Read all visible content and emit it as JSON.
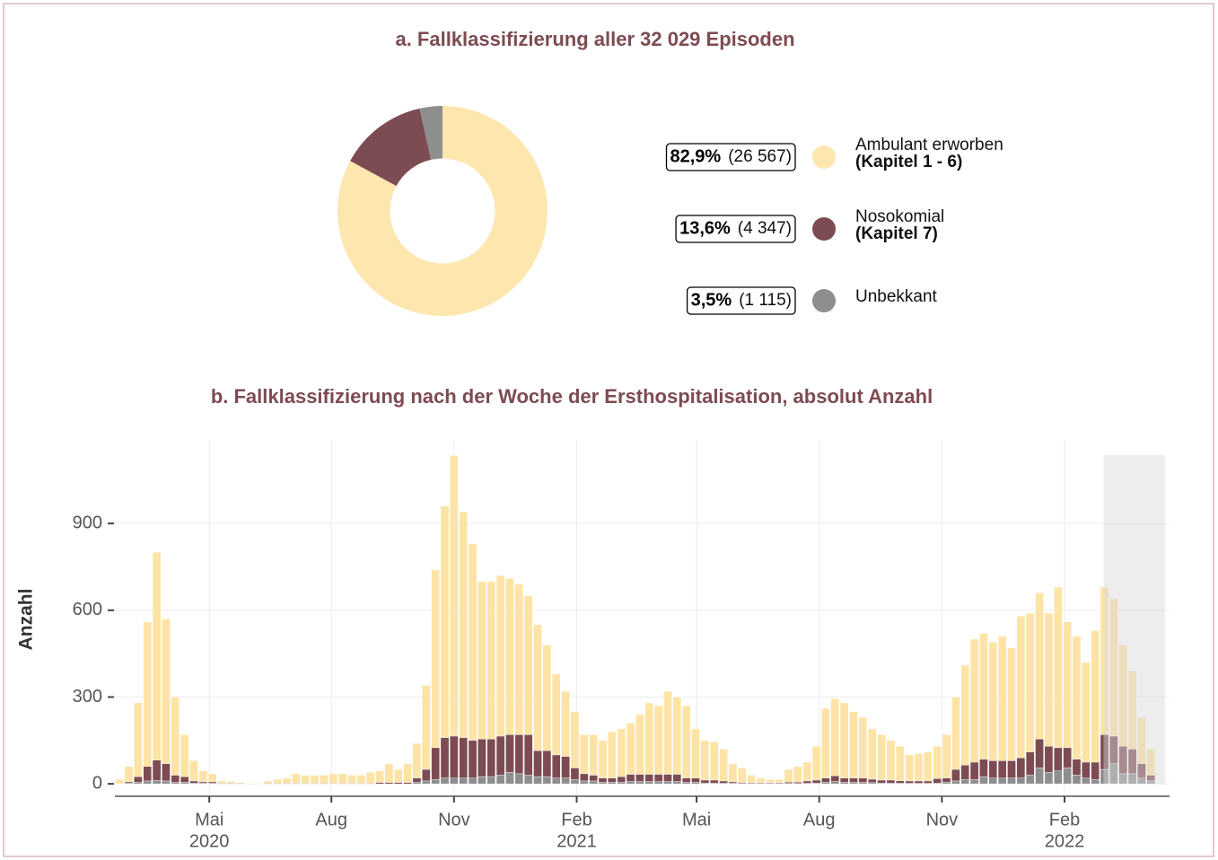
{
  "chart_data": [
    {
      "type": "pie",
      "title": "a. Fallklassifizierung aller 32 029 Episoden",
      "hole": 0.5,
      "categories": [
        "Ambulant erworben",
        "Nosokomial",
        "Unbekkant"
      ],
      "sublabels": [
        "(Kapitel 1 -  6)",
        "(Kapitel 7)",
        null
      ],
      "values": [
        82.9,
        13.6,
        3.5
      ],
      "value_labels": [
        "82,9%",
        "13,6%",
        "3,5%"
      ],
      "counts": [
        26567,
        4347,
        1115
      ],
      "count_labels": [
        "(26 567)",
        "(4 347)",
        "(1 115)"
      ],
      "colors": [
        "#fde7ae",
        "#7d4b52",
        "#8e8e8e"
      ]
    },
    {
      "type": "stacked_bar",
      "title": "b. Fallklassifizierung nach der Woche der Ersthospitalisation, absolut Anzahl",
      "y_label": "Anzahl",
      "categories": [
        null,
        null,
        null,
        null,
        null,
        null,
        null,
        null,
        null,
        null,
        null,
        null,
        null,
        null,
        null,
        null,
        null,
        null,
        null,
        null,
        null,
        null,
        null,
        null,
        null,
        null,
        null,
        null,
        null,
        null,
        null,
        null,
        null,
        null,
        null,
        null,
        null,
        null,
        null,
        null,
        null,
        null,
        null,
        null,
        null,
        null,
        null,
        null,
        null,
        null,
        null,
        null,
        null,
        null,
        null,
        null,
        null,
        null,
        null,
        null,
        null,
        null,
        null,
        null,
        null,
        null,
        null,
        null,
        null,
        null,
        null,
        null,
        null,
        null,
        null,
        null,
        null,
        null,
        null,
        null,
        null,
        null,
        null,
        null,
        null,
        null,
        null,
        null,
        null,
        null,
        null,
        null,
        null,
        null,
        null,
        null,
        null,
        null,
        null,
        null,
        null,
        null,
        null,
        null,
        null,
        null,
        null,
        null,
        null,
        null,
        null,
        null
      ],
      "series": [
        {
          "name": "Unbekkant",
          "color": "#8e8e8e",
          "values": [
            0,
            2,
            5,
            10,
            12,
            10,
            5,
            5,
            2,
            2,
            2,
            0,
            0,
            0,
            0,
            0,
            0,
            0,
            0,
            0,
            0,
            0,
            0,
            0,
            0,
            0,
            0,
            0,
            0,
            0,
            0,
            0,
            5,
            10,
            15,
            20,
            20,
            20,
            20,
            25,
            25,
            30,
            40,
            35,
            30,
            25,
            25,
            20,
            20,
            15,
            10,
            10,
            5,
            5,
            5,
            8,
            8,
            8,
            8,
            8,
            8,
            5,
            5,
            3,
            3,
            2,
            2,
            1,
            1,
            1,
            1,
            1,
            1,
            1,
            2,
            3,
            5,
            8,
            5,
            5,
            5,
            4,
            3,
            3,
            3,
            2,
            2,
            2,
            3,
            5,
            10,
            15,
            15,
            25,
            20,
            20,
            20,
            20,
            30,
            55,
            40,
            45,
            55,
            30,
            20,
            15,
            50,
            70,
            35,
            35,
            20,
            10
          ]
        },
        {
          "name": "Nosokomial",
          "color": "#7d4b52",
          "values": [
            0,
            5,
            20,
            50,
            70,
            60,
            25,
            20,
            8,
            5,
            5,
            2,
            2,
            2,
            1,
            0,
            2,
            2,
            2,
            2,
            2,
            2,
            2,
            2,
            2,
            2,
            2,
            2,
            5,
            5,
            5,
            5,
            15,
            40,
            110,
            140,
            145,
            140,
            130,
            130,
            130,
            135,
            130,
            135,
            140,
            90,
            90,
            80,
            75,
            40,
            25,
            20,
            15,
            15,
            20,
            25,
            25,
            25,
            25,
            25,
            25,
            15,
            15,
            10,
            10,
            8,
            5,
            4,
            3,
            3,
            3,
            3,
            5,
            5,
            8,
            10,
            15,
            20,
            15,
            15,
            15,
            12,
            10,
            10,
            8,
            8,
            8,
            8,
            15,
            15,
            40,
            50,
            60,
            60,
            60,
            60,
            60,
            70,
            80,
            100,
            90,
            80,
            70,
            55,
            55,
            60,
            120,
            95,
            95,
            85,
            50,
            20
          ]
        },
        {
          "name": "Ambulant erworben",
          "color": "#fde4a6",
          "values": [
            15,
            53,
            255,
            500,
            718,
            500,
            270,
            145,
            70,
            38,
            28,
            8,
            6,
            3,
            2,
            2,
            8,
            13,
            18,
            33,
            28,
            28,
            28,
            33,
            33,
            28,
            28,
            38,
            40,
            65,
            45,
            65,
            120,
            290,
            615,
            800,
            970,
            780,
            680,
            545,
            545,
            555,
            540,
            520,
            480,
            435,
            365,
            280,
            225,
            195,
            135,
            140,
            130,
            160,
            165,
            177,
            207,
            247,
            237,
            287,
            267,
            250,
            170,
            137,
            132,
            110,
            63,
            50,
            26,
            16,
            11,
            11,
            44,
            54,
            65,
            117,
            240,
            267,
            260,
            230,
            210,
            174,
            157,
            137,
            119,
            90,
            95,
            100,
            112,
            150,
            250,
            345,
            425,
            435,
            410,
            430,
            390,
            490,
            480,
            505,
            460,
            555,
            435,
            425,
            345,
            455,
            510,
            475,
            350,
            270,
            160,
            90
          ]
        }
      ],
      "xlim": [
        -0.5,
        113
      ],
      "xticks": [
        {
          "value": 9.66,
          "label": "Mai"
        },
        {
          "value": 22.8,
          "label": "Aug"
        },
        {
          "value": 36.0,
          "label": "Nov"
        },
        {
          "value": 49.2,
          "label": "Feb"
        },
        {
          "value": 62.1,
          "label": "Mai"
        },
        {
          "value": 75.3,
          "label": "Aug"
        },
        {
          "value": 88.5,
          "label": "Nov"
        },
        {
          "value": 101.7,
          "label": "Feb"
        }
      ],
      "year_labels": [
        {
          "value": 9.66,
          "label": "2020"
        },
        {
          "value": 49.2,
          "label": "2021"
        },
        {
          "value": 101.7,
          "label": "2022"
        }
      ],
      "ylim": [
        -43,
        1189
      ],
      "yticks": [
        0,
        300,
        600,
        900
      ],
      "grid": true,
      "highlight": {
        "xlim": [
          105.9,
          112.5
        ],
        "ylim": [
          0,
          1136
        ]
      }
    }
  ]
}
